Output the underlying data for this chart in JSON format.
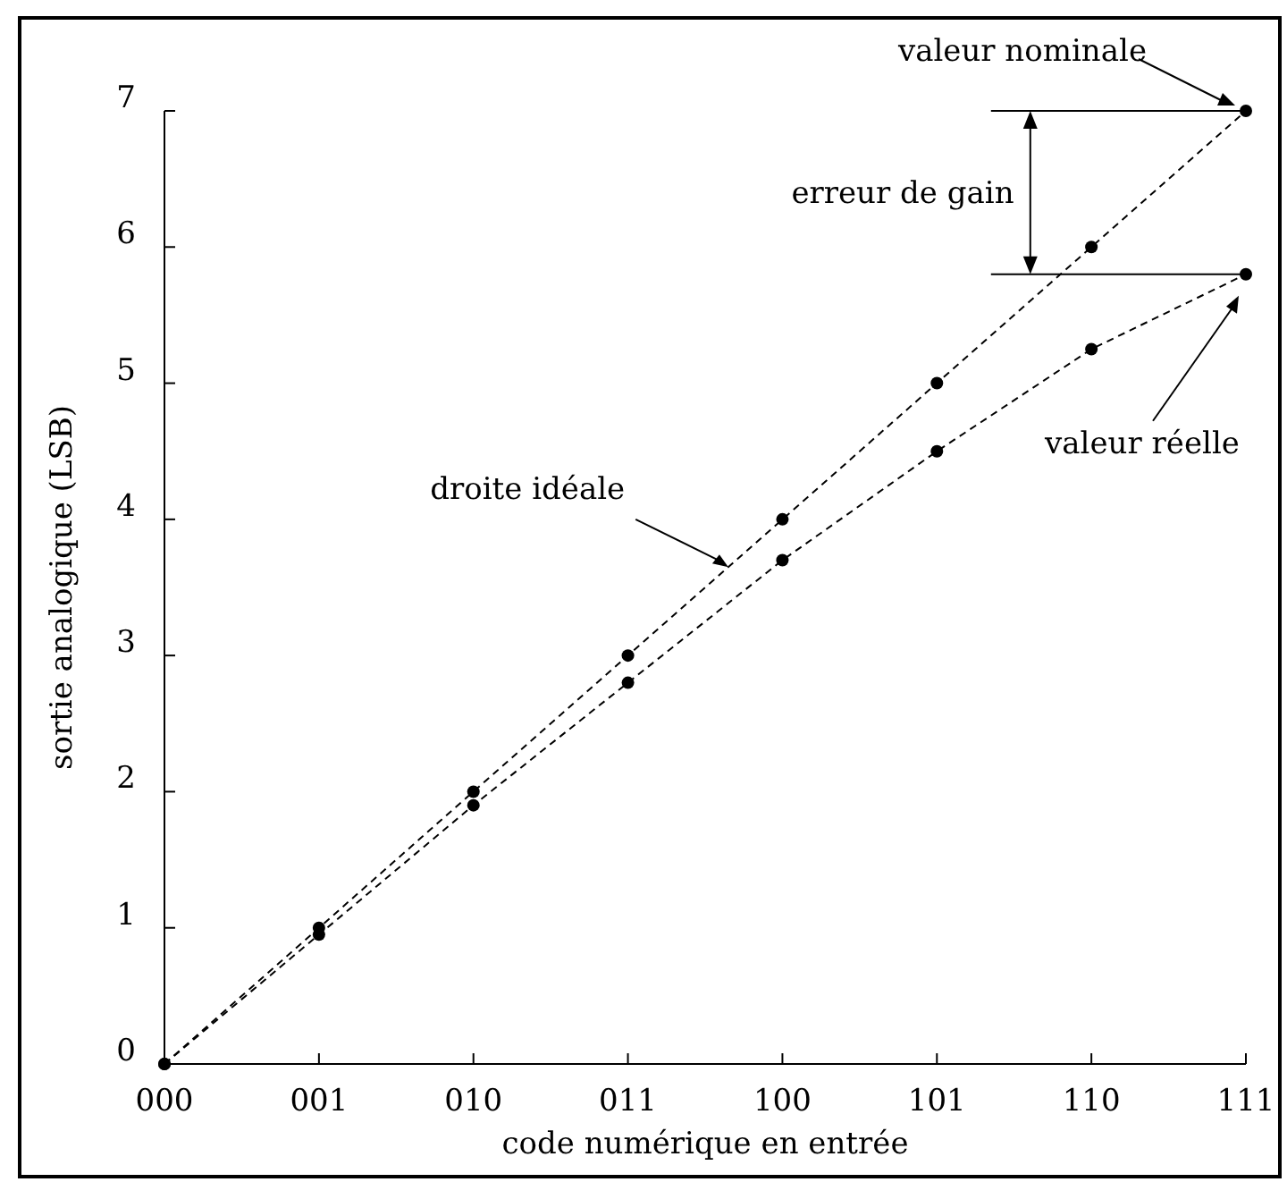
{
  "chart_data": {
    "type": "line",
    "xlabel": "code numérique en entrée",
    "ylabel": "sortie analogique (LSB)",
    "categories": [
      "000",
      "001",
      "010",
      "011",
      "100",
      "101",
      "110",
      "111"
    ],
    "series": [
      {
        "color": "#000000",
        "values": [
          0,
          1,
          2,
          3,
          4,
          5,
          6,
          7
        ]
      },
      {
        "color": "#000000",
        "values": [
          0,
          0.95,
          1.9,
          2.8,
          3.7,
          4.5,
          5.25,
          5.8
        ]
      }
    ],
    "ylim": [
      0,
      7
    ],
    "yticks": [
      0,
      1,
      2,
      3,
      4,
      5,
      6,
      7
    ],
    "grid": false,
    "marker": "circle",
    "line_style": "dashed",
    "ref_lines": [
      {
        "axis": "y",
        "value": 7,
        "color": "#000000"
      },
      {
        "axis": "y",
        "value": 5.8,
        "color": "#000000"
      }
    ],
    "annotations": [
      "valeur nominale",
      "erreur de gain",
      "droite idéale",
      "valeur réelle"
    ]
  }
}
